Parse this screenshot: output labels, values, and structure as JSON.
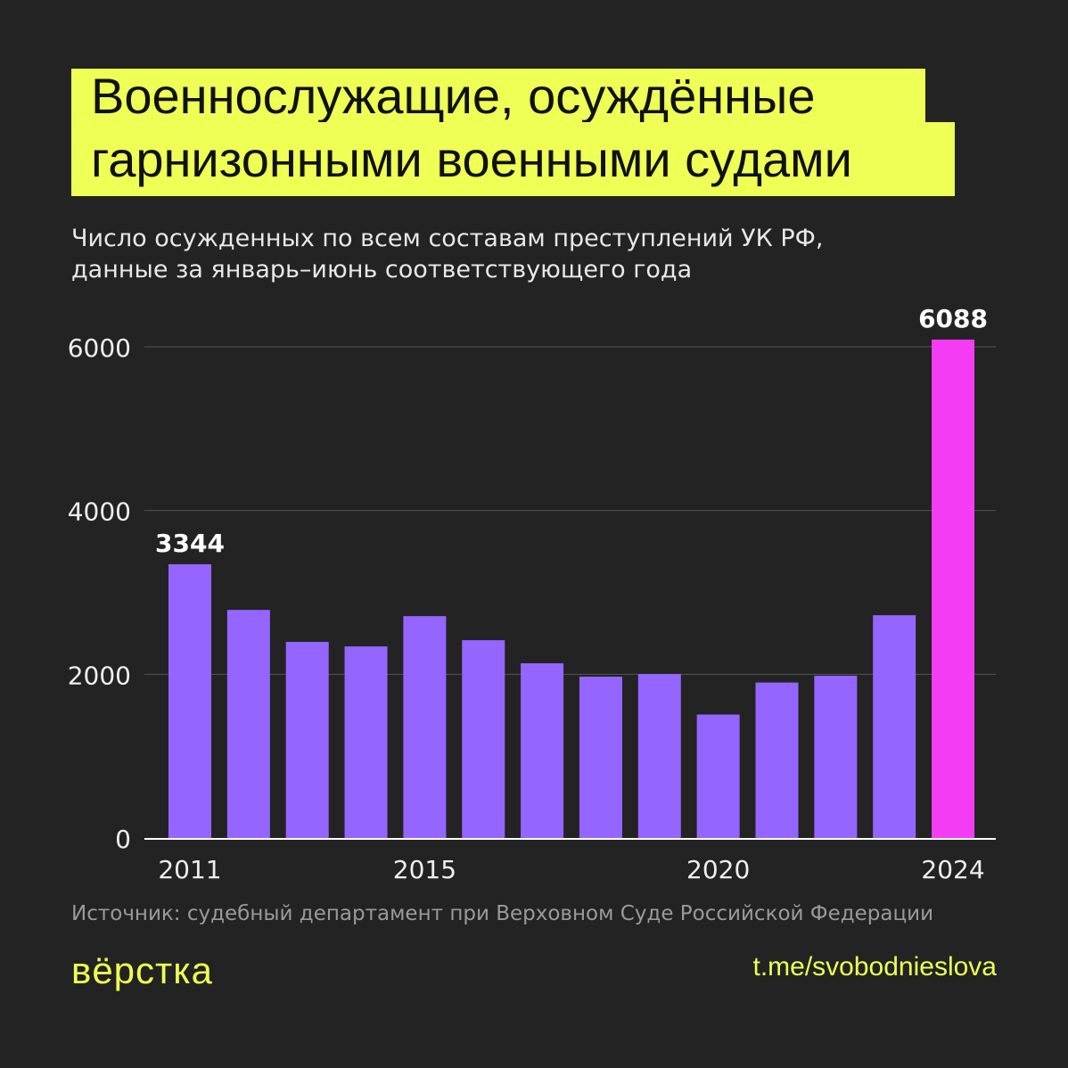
{
  "title_lines": [
    "Военнослужащие, осуждённые",
    "гарнизонными военными судами"
  ],
  "subtitle_lines": [
    "Число осужденных по всем составам преступлений УК РФ,",
    "данные за январь–июнь соответствующего года"
  ],
  "source": "Источник: судебный департамент при Верховном Суде Российской Федерации",
  "logo": "вёрстка",
  "link": "t.me/svobodnieslova",
  "colors": {
    "bar": "#9466ff",
    "highlight_bar": "#f53cf5",
    "title_bg": "#eeff55",
    "background": "#232323"
  },
  "chart_data": {
    "type": "bar",
    "categories": [
      "2011",
      "2012",
      "2013",
      "2014",
      "2015",
      "2016",
      "2017",
      "2018",
      "2019",
      "2020",
      "2021",
      "2022",
      "2023",
      "2024"
    ],
    "values": [
      3344,
      2786,
      2395,
      2340,
      2710,
      2416,
      2134,
      1971,
      2003,
      1508,
      1899,
      1982,
      2721,
      6088
    ],
    "data_labels": {
      "2011": "3344",
      "2024": "6088"
    },
    "highlight": "2024",
    "x_tick_labels": [
      "2011",
      "2015",
      "2020",
      "2024"
    ],
    "y_ticks": [
      0,
      2000,
      4000,
      6000
    ],
    "y_tick_labels": [
      "0",
      "2000",
      "4000",
      "6000"
    ],
    "ylim": [
      0,
      6000
    ],
    "grid": true
  }
}
